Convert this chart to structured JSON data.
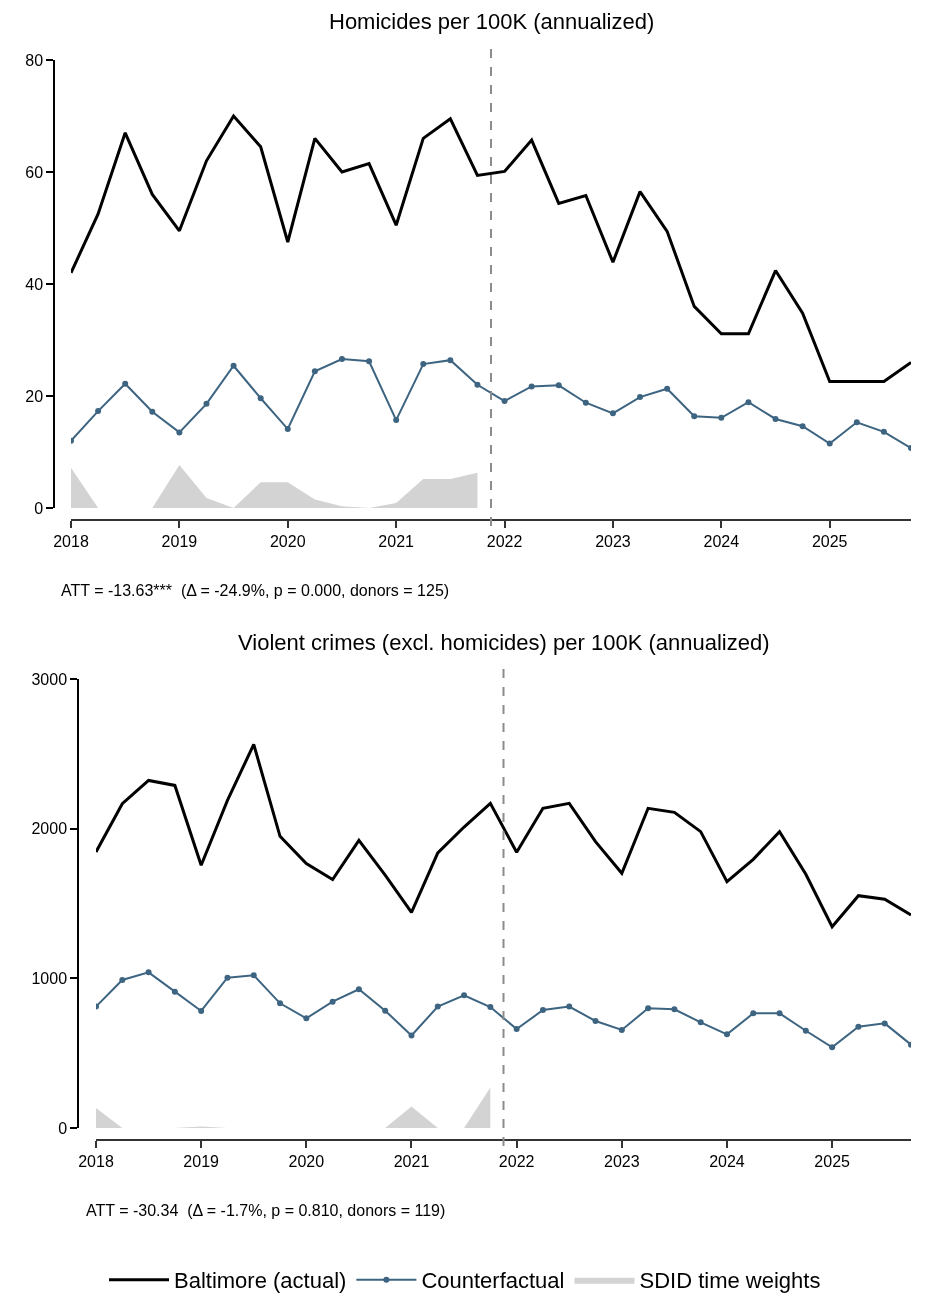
{
  "chart_data": [
    {
      "type": "line",
      "title": "Homicides per 100K (annualized)",
      "x": [
        2018,
        2018.25,
        2018.5,
        2018.75,
        2019,
        2019.25,
        2019.5,
        2019.75,
        2020,
        2020.25,
        2020.5,
        2020.75,
        2021,
        2021.25,
        2021.5,
        2021.75,
        2022,
        2022.25,
        2022.5,
        2022.75,
        2023,
        2023.25,
        2023.5,
        2023.75,
        2024,
        2024.25,
        2024.5,
        2024.75,
        2025,
        2025.25,
        2025.5,
        2025.75
      ],
      "series": [
        {
          "color": "#000000",
          "marker": "none",
          "values": [
            42,
            52.5,
            67,
            56,
            49.5,
            62,
            70,
            64.5,
            47.5,
            66,
            60,
            61.5,
            50.5,
            66,
            69.5,
            59.4,
            60.1,
            65.7,
            54.4,
            55.8,
            43.9,
            56.5,
            49.4,
            36,
            31.1,
            31.1,
            42.4,
            34.8,
            22.6,
            22.6,
            22.6,
            26
          ]
        },
        {
          "color": "#3d6480",
          "marker": "circle",
          "values": [
            12,
            17.3,
            22.2,
            17.2,
            13.5,
            18.6,
            25.4,
            19.6,
            14.1,
            24.4,
            26.6,
            26.2,
            15.7,
            25.7,
            26.4,
            22,
            19.1,
            21.7,
            21.9,
            18.8,
            16.9,
            19.8,
            21.3,
            16.4,
            16.1,
            18.9,
            15.9,
            14.6,
            11.5,
            15.3,
            13.6,
            10.7
          ]
        },
        {
          "type": "area",
          "color": "#d3d3d3",
          "x": [
            2018,
            2018.25,
            2018.5,
            2018.75,
            2019,
            2019.25,
            2019.5,
            2019.75,
            2020,
            2020.25,
            2020.5,
            2020.75,
            2021,
            2021.25,
            2021.5,
            2021.75
          ],
          "values": [
            7.2,
            0,
            0,
            0,
            7.7,
            1.8,
            0,
            4.6,
            4.6,
            1.5,
            0.3,
            0,
            0.9,
            5.2,
            5.2,
            6.3
          ]
        }
      ],
      "xlim": [
        2018,
        2025.75
      ],
      "xticks": [
        2018,
        2019,
        2020,
        2021,
        2022,
        2023,
        2024,
        2025
      ],
      "ylim": [
        0,
        80
      ],
      "yticks": [
        0,
        20,
        40,
        60,
        80
      ],
      "ref_lines": [
        {
          "axis": "x",
          "value": 2021.875,
          "color": "#8c8c8c",
          "line_style": "dashed"
        }
      ],
      "annotations": [
        "ATT = -13.63***  (Δ = -24.9%, p = 0.000, donors = 125)"
      ]
    },
    {
      "type": "line",
      "title": "Violent crimes (excl. homicides) per 100K (annualized)",
      "x": [
        2018,
        2018.25,
        2018.5,
        2018.75,
        2019,
        2019.25,
        2019.5,
        2019.75,
        2020,
        2020.25,
        2020.5,
        2020.75,
        2021,
        2021.25,
        2021.5,
        2021.75,
        2022,
        2022.25,
        2022.5,
        2022.75,
        2023,
        2023.25,
        2023.5,
        2023.75,
        2024,
        2024.25,
        2024.5,
        2024.75,
        2025,
        2025.25,
        2025.5,
        2025.75
      ],
      "series": [
        {
          "name": "Baltimore (actual)",
          "color": "#000000",
          "marker": "none",
          "values": [
            1844,
            2167,
            2322,
            2289,
            1756,
            2189,
            2563,
            1949,
            1767,
            1660,
            1922,
            1689,
            1440,
            1838,
            2011,
            2169,
            1842,
            2136,
            2169,
            1913,
            1702,
            2136,
            2109,
            1980,
            1646,
            1795,
            1980,
            1695,
            1345,
            1552,
            1528,
            1423
          ]
        },
        {
          "name": "Counterfactual",
          "color": "#3d6480",
          "marker": "circle",
          "values": [
            811,
            989,
            1040,
            911,
            782,
            1004,
            1020,
            833,
            733,
            844,
            927,
            784,
            618,
            811,
            887,
            808,
            661,
            788,
            811,
            715,
            655,
            800,
            793,
            706,
            626,
            766,
            766,
            650,
            539,
            677,
            699,
            557
          ]
        },
        {
          "name": "SDID time weights",
          "type": "area",
          "color": "#d3d3d3",
          "x": [
            2018,
            2018.25,
            2018.5,
            2018.75,
            2019,
            2019.25,
            2019.5,
            2019.75,
            2020,
            2020.25,
            2020.5,
            2020.75,
            2021,
            2021.25,
            2021.5,
            2021.75
          ],
          "values": [
            134,
            0,
            0,
            0,
            10,
            0,
            0,
            0,
            0,
            0,
            0,
            0,
            144,
            0,
            0,
            270
          ]
        }
      ],
      "xlim": [
        2018,
        2025.75
      ],
      "xticks": [
        2018,
        2019,
        2020,
        2021,
        2022,
        2023,
        2024,
        2025
      ],
      "ylim": [
        0,
        3000
      ],
      "yticks": [
        0,
        1000,
        2000,
        3000
      ],
      "ref_lines": [
        {
          "axis": "x",
          "value": 2021.875,
          "color": "#8c8c8c",
          "line_style": "dashed"
        }
      ],
      "annotations": [
        "ATT = -30.34  (Δ = -1.7%, p = 0.810, donors = 119)"
      ],
      "legend": "bottom"
    }
  ]
}
